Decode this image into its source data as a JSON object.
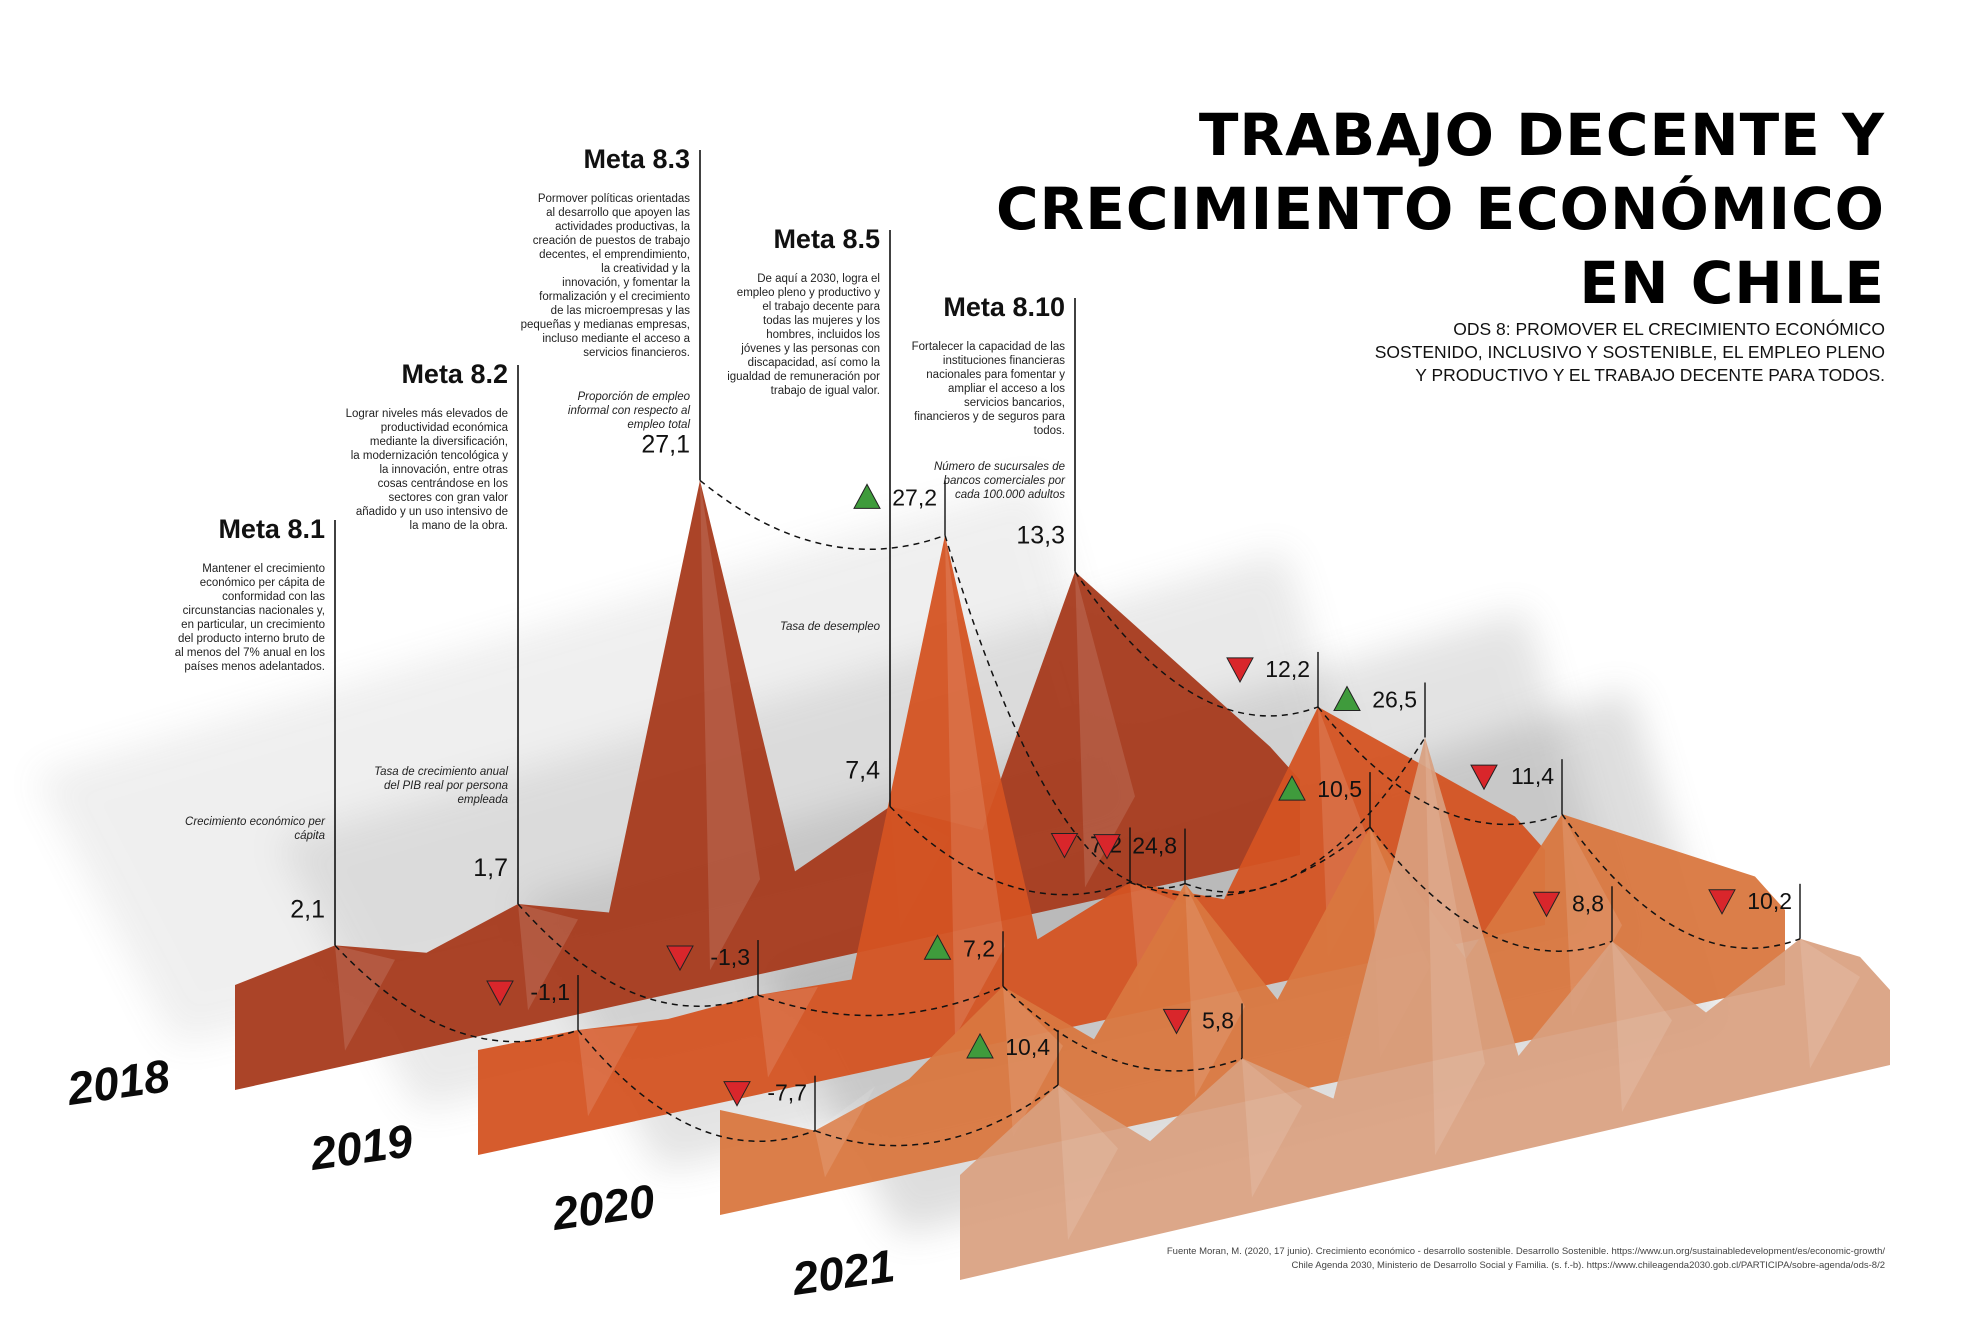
{
  "title": {
    "line1": "TRABAJO DECENTE Y",
    "line2": "CRECIMIENTO ECONÓMICO",
    "line3": "EN CHILE"
  },
  "subtitle": "ODS 8: PROMOVER EL CRECIMIENTO ECONÓMICO SOSTENIDO, INCLUSIVO Y SOSTENIBLE, EL EMPLEO PLENO Y PRODUCTIVO Y EL TRABAJO DECENTE PARA TODOS.",
  "source": {
    "line1": "Fuente Moran, M. (2020, 17 junio). Crecimiento económico - desarrollo sostenible. Desarrollo Sostenible. https://www.un.org/sustainabledevelopment/es/economic-growth/",
    "line2": "Chile Agenda 2030, Ministerio de Desarrollo Social y Familia. (s. f.-b). https://www.chileagenda2030.gob.cl/PARTICIPA/sobre-agenda/ods-8/2"
  },
  "metas": [
    {
      "title": "Meta 8.1",
      "description": "Mantener el crecimiento económico per cápita de conformidad con las circunstancias nacionales y, en particular, un crecimiento del producto interno bruto de al menos del 7% anual en los países menos adelantados.",
      "indicator": "Crecimiento económico per cápita"
    },
    {
      "title": "Meta 8.2",
      "description": "Lograr niveles más elevados de productividad económica mediante la diversificación, la modernización tencológica y la innovación, entre otras cosas centrándose en los sectores con gran valor añadido y un uso intensivo de la mano de la obra.",
      "indicator": "Tasa de crecimiento anual del PIB real por persona empleada"
    },
    {
      "title": "Meta 8.3",
      "description": "Pormover políticas orientadas al desarrollo que apoyen las actividades productivas, la creación de puestos de trabajo decentes, el emprendimiento, la creatividad y la innovación, y fomentar la formalización y el crecimiento de las microempresas y las pequeñas y medianas empresas, incluso mediante el acceso a servicios financieros.",
      "indicator": "Proporción de empleo informal con respecto al empleo total"
    },
    {
      "title": "Meta 8.5",
      "description": "De aquí a 2030, logra el empleo pleno y productivo y el trabajo decente para todas las mujeres y los hombres, incluidos los jóvenes y las personas con discapacidad, así como la igualdad de remuneración por trabajo de igual valor.",
      "indicator": "Tasa de desempleo"
    },
    {
      "title": "Meta 8.10",
      "description": "Fortalecer la capacidad de las instituciones financieras nacionales para fomentar y ampliar el acceso a los servicios bancarios, financieros y de seguros para todos.",
      "indicator": "Número de sucursales de bancos comerciales por cada 100.000 adultos"
    }
  ],
  "colors": {
    "2018": "#a63a1c",
    "2019": "#d45322",
    "2020": "#d9773f",
    "2021": "#d9a07f",
    "up": "#3f9b3c",
    "down": "#d9262b"
  },
  "chart_data": {
    "type": "area",
    "categories": [
      "Meta 8.1",
      "Meta 8.2",
      "Meta 8.3",
      "Meta 8.5",
      "Meta 8.10"
    ],
    "series": [
      {
        "name": "2018",
        "values": [
          2.1,
          1.7,
          27.1,
          7.4,
          13.3
        ],
        "labels": [
          "2,1",
          "1,7",
          "27,1",
          "7,4",
          "13,3"
        ],
        "trend": [
          "",
          "",
          "",
          "",
          ""
        ]
      },
      {
        "name": "2019",
        "values": [
          -1.1,
          -1.3,
          27.2,
          7.2,
          12.2
        ],
        "labels": [
          "-1,1",
          "-1,3",
          "27,2",
          "7,2",
          "12,2"
        ],
        "trend": [
          "down",
          "down",
          "up",
          "down",
          "down"
        ]
      },
      {
        "name": "2020",
        "values": [
          -7.7,
          7.2,
          24.8,
          10.5,
          11.4
        ],
        "labels": [
          "-7,7",
          "7,2",
          "24,8",
          "10,5",
          "11,4"
        ],
        "trend": [
          "down",
          "up",
          "down",
          "up",
          "down"
        ]
      },
      {
        "name": "2021",
        "values": [
          10.4,
          5.8,
          26.5,
          8.8,
          10.2
        ],
        "labels": [
          "10,4",
          "5,8",
          "26,5",
          "8,8",
          "10,2"
        ],
        "trend": [
          "up",
          "down",
          "up",
          "down",
          "down"
        ]
      }
    ]
  }
}
